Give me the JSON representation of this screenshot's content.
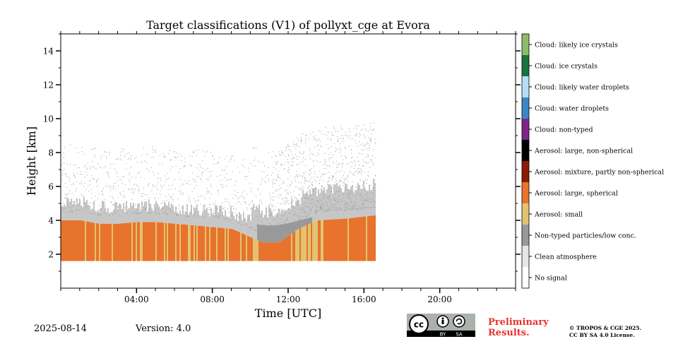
{
  "chart_data": {
    "type": "heatmap",
    "title": "Target classifications (V1) of pollyxt_cge at Evora",
    "xlabel": "Time [UTC]",
    "ylabel": "Height [km]",
    "xlim_hours": [
      0,
      24
    ],
    "ylim_km": [
      0,
      15
    ],
    "x_ticks": [
      {
        "hour": 4,
        "label": "04:00"
      },
      {
        "hour": 8,
        "label": "08:00"
      },
      {
        "hour": 12,
        "label": "12:00"
      },
      {
        "hour": 16,
        "label": "16:00"
      },
      {
        "hour": 20,
        "label": "20:00"
      }
    ],
    "y_ticks": [
      2,
      4,
      6,
      8,
      10,
      12,
      14
    ],
    "data_end_hour": 16.6,
    "lowest_range_km": 1.6,
    "aerosol_layer_top_km": [
      [
        0,
        4.0
      ],
      [
        1,
        4.0
      ],
      [
        2,
        3.8
      ],
      [
        3,
        3.8
      ],
      [
        4,
        3.9
      ],
      [
        5,
        3.9
      ],
      [
        6,
        3.8
      ],
      [
        7,
        3.7
      ],
      [
        8,
        3.6
      ],
      [
        9,
        3.5
      ],
      [
        10,
        3.0
      ],
      [
        10.6,
        2.7
      ],
      [
        11.5,
        2.7
      ],
      [
        12.5,
        3.5
      ],
      [
        13.5,
        4.0
      ],
      [
        15,
        4.1
      ],
      [
        16.6,
        4.3
      ]
    ],
    "legend": [
      {
        "label": "Cloud: likely ice crystals",
        "color": "#8fbc6a"
      },
      {
        "label": "Cloud: ice crystals",
        "color": "#17753b"
      },
      {
        "label": "Cloud: likely water droplets",
        "color": "#b6dcf7"
      },
      {
        "label": "Cloud: water droplets",
        "color": "#3b86c6"
      },
      {
        "label": "Cloud: non-typed",
        "color": "#7f2587"
      },
      {
        "label": "Aerosol: large, non-spherical",
        "color": "#000000"
      },
      {
        "label": "Aerosol: mixture, partly non-spherical",
        "color": "#8b1c05"
      },
      {
        "label": "Aerosol: large, spherical",
        "color": "#e8732c"
      },
      {
        "label": "Aerosol: small",
        "color": "#e2c372"
      },
      {
        "label": "Non-typed particles/low conc.",
        "color": "#999999"
      },
      {
        "label": "Clean atmosphere",
        "color": "#e6e6e6"
      },
      {
        "label": "No signal",
        "color": "#ffffff"
      }
    ]
  },
  "footer": {
    "date": "2025-08-14",
    "version": "Version: 4.0",
    "preliminary_line1": "Preliminary",
    "preliminary_line2": "Results.",
    "copyright_line1": "© TROPOS & CGE 2025.",
    "copyright_line2": "CC BY SA 4.0 License.",
    "cc_label": "cc",
    "cc_by": "BY",
    "cc_sa": "SA"
  }
}
